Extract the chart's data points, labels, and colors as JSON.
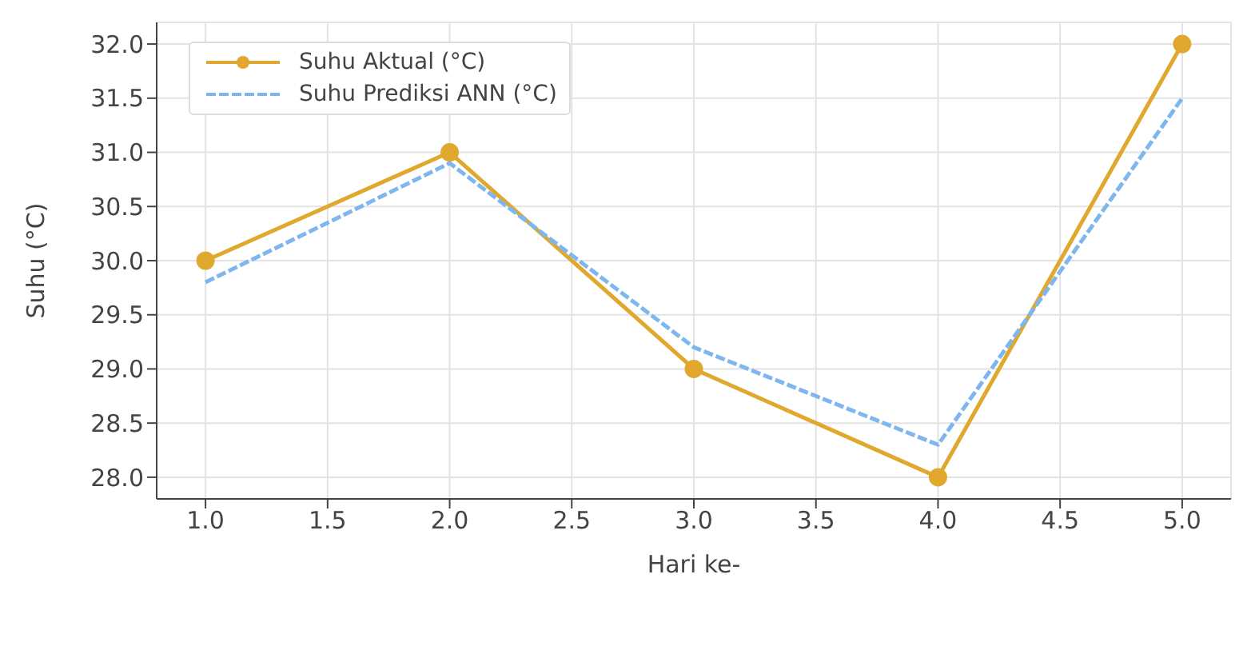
{
  "chart_data": {
    "type": "line",
    "xlabel": "Hari ke-",
    "ylabel": "Suhu (°C)",
    "x": [
      1,
      2,
      3,
      4,
      5
    ],
    "series": [
      {
        "name": "Suhu Aktual (°C)",
        "color": "#e0a82e",
        "values": [
          30,
          31,
          29,
          28,
          32
        ],
        "marker": "circle",
        "line_style": "solid"
      },
      {
        "name": "Suhu Prediksi ANN (°C)",
        "color": "#7eb6f0",
        "values": [
          29.8,
          30.9,
          29.2,
          28.3,
          31.5
        ],
        "marker": "none",
        "line_style": "dashed"
      }
    ],
    "xlim": [
      0.8,
      5.2
    ],
    "xticks": [
      {
        "value": 1,
        "label": "1.0"
      },
      {
        "value": 1.5,
        "label": "1.5"
      },
      {
        "value": 2,
        "label": "2.0"
      },
      {
        "value": 2.5,
        "label": "2.5"
      },
      {
        "value": 3,
        "label": "3.0"
      },
      {
        "value": 3.5,
        "label": "3.5"
      },
      {
        "value": 4,
        "label": "4.0"
      },
      {
        "value": 4.5,
        "label": "4.5"
      },
      {
        "value": 5,
        "label": "5.0"
      }
    ],
    "ylim": [
      27.8,
      32.2
    ],
    "yticks": [
      {
        "value": 28,
        "label": "28.0"
      },
      {
        "value": 28.5,
        "label": "28.5"
      },
      {
        "value": 29,
        "label": "29.0"
      },
      {
        "value": 29.5,
        "label": "29.5"
      },
      {
        "value": 30,
        "label": "30.0"
      },
      {
        "value": 30.5,
        "label": "30.5"
      },
      {
        "value": 31,
        "label": "31.0"
      },
      {
        "value": 31.5,
        "label": "31.5"
      },
      {
        "value": 32,
        "label": "32.0"
      }
    ],
    "grid": true,
    "legend": "top left"
  }
}
